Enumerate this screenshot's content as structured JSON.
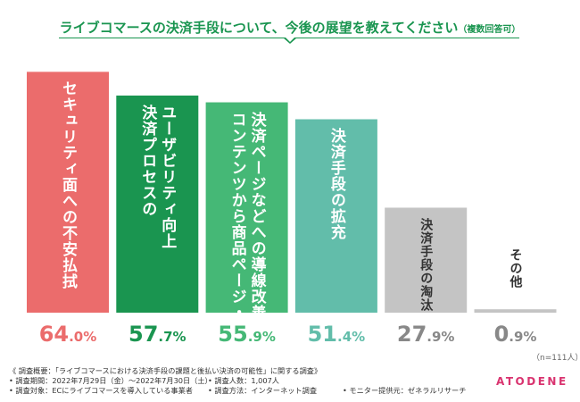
{
  "header": {
    "title": "ライブコマースの決済手段について、今後の展望を教えてください",
    "title_note": "（複数回答可）"
  },
  "chart_data": {
    "type": "bar",
    "title": "ライブコマースの決済手段について、今後の展望を教えてください（複数回答可）",
    "unit": "%",
    "ylim": [
      0,
      66
    ],
    "categories": [
      "セキュリティ面への不安払拭",
      "ユーザビリティ向上\n決済プロセスの",
      "決済ページなどへの導線改善\nコンテンツから商品ページ・",
      "決済手段の拡充",
      "決済手段の淘汰",
      "その他"
    ],
    "values": [
      64.0,
      57.7,
      55.9,
      51.4,
      27.9,
      0.9
    ],
    "value_labels": [
      {
        "int": "64",
        "dec": ".0%"
      },
      {
        "int": "57",
        "dec": ".7%"
      },
      {
        "int": "55",
        "dec": ".9%"
      },
      {
        "int": "51",
        "dec": ".4%"
      },
      {
        "int": "27",
        "dec": ".9%"
      },
      {
        "int": "0",
        "dec": ".9%"
      }
    ],
    "colors": [
      "#eb6c6c",
      "#1a9550",
      "#45b876",
      "#62bdaa",
      "#c4c4c4",
      "#c4c4c4"
    ],
    "label_colors": [
      "#ffffff",
      "#ffffff",
      "#ffffff",
      "#ffffff",
      "#333333",
      "#333333"
    ],
    "value_colors": [
      "#eb6c6c",
      "#1a9550",
      "#45b876",
      "#62bdaa",
      "#888888",
      "#888888"
    ]
  },
  "n_label": "（n=111人）",
  "footer": {
    "summary": "《 調査概要：「ライブコマースにおける決済手段の課題と後払い決済の可能性」に関する調査》",
    "period": "• 調査期間：2022年7月29日（金）〜2022年7月30日（土）",
    "count": "• 調査人数：1,007人",
    "target": "• 調査対象：ECにライブコマースを導入している事業者",
    "method": "• 調査方法：インターネット調査",
    "provider": "• モニター提供元：ゼネラルリサーチ"
  },
  "brand": {
    "logo": "ATODENE",
    "color": "#d9336f"
  }
}
